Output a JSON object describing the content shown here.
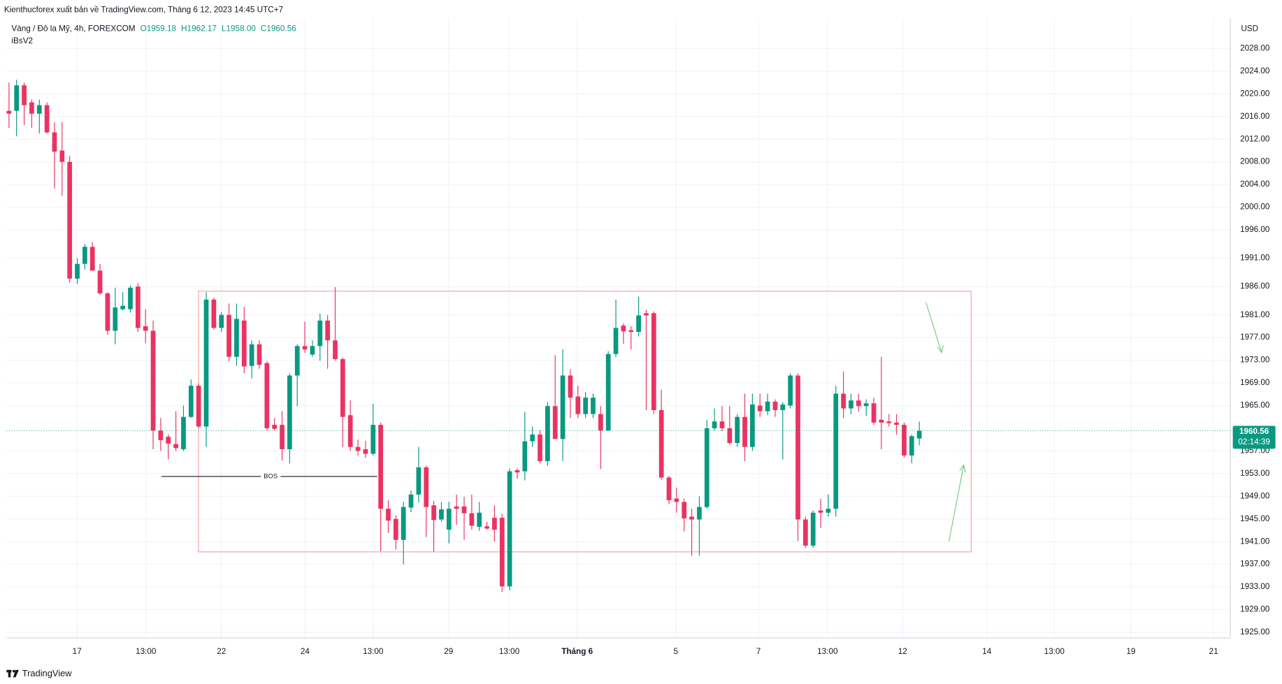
{
  "header": {
    "publisher": "Kienthucforex xuất bản về TradingView.com, Tháng 6 12, 2023 14:45 UTC+7",
    "footer": "TradingView"
  },
  "chart_data": {
    "type": "candlestick",
    "symbol": "Vàng / Đô la Mỹ, 4h, FOREXCOM",
    "ohlc_legend": [
      "O1959.18",
      "H1962.17",
      "L1958.00",
      "C1960.56"
    ],
    "indicator": "iBsV2",
    "currency": "USD",
    "price_label": "1960.56",
    "countdown": "02:14:39",
    "annotation": "BOS",
    "up_color": "#089981",
    "down_color": "#ea3362",
    "grid": true,
    "open": [
      2017,
      2017,
      2021.5,
      2018.5,
      2016.5,
      2018,
      2013.2,
      2010,
      2008,
      1987.4,
      1990,
      1993,
      1988.8,
      1984.8,
      1978.2,
      1982,
      1982,
      1986,
      1979,
      1978.2,
      1960.6,
      1959.5,
      1958.2,
      1957.3,
      1963,
      1968.5,
      1961.3,
      1983.7,
      1978.7,
      1981,
      1973.6,
      1980,
      1972,
      1975.8,
      1972.5,
      1961.6,
      1961.6,
      1957.3,
      1970.3,
      1975.5,
      1974,
      1975.5,
      1980,
      1976.5,
      1973.2,
      1963.3,
      1957.7,
      1957.3,
      1956.5,
      1961.6,
      1946.8,
      1945,
      1941.3,
      1947,
      1949.3,
      1954.1,
      1947.4,
      1944.9,
      1943.1,
      1947.2,
      1947.2,
      1946,
      1943.6,
      1943.7,
      1945.2,
      1945.2,
      1933.1,
      1953.6,
      1953.4,
      1958.7,
      1959.9,
      1955.2,
      1964.9,
      1959.1,
      1970.3,
      1966.6,
      1963.5,
      1963.5,
      1963.5,
      1960.6,
      1974.1,
      1979.1,
      1978.3,
      1978,
      1981.3,
      1981.3,
      1964.2,
      1952.3,
      1948.6,
      1948,
      1945.4,
      1944.9,
      1947.1,
      1961,
      1962.2,
      1961,
      1958.4,
      1963,
      1957.7,
      1965,
      1964,
      1965.7,
      1964.2,
      1965,
      1970.3,
      1944.9,
      1940.3,
      1946.5,
      1946.1,
      1946.8,
      1967.1,
      1964.5,
      1965.9,
      1964.9,
      1965.4,
      1962.5,
      1962.2,
      1962,
      1961.6,
      1956.2,
      1959.18
    ],
    "high": [
      2022,
      2022.5,
      2022,
      2019,
      2019,
      2018.5,
      2015,
      2015,
      2009,
      1991,
      1993.5,
      1993.8,
      1990,
      1985,
      1985.8,
      1985,
      1986.2,
      1986.6,
      1982,
      1980,
      1962.8,
      1959.9,
      1964,
      1965,
      1969.6,
      1968.9,
      1985,
      1984,
      1981.5,
      1983,
      1983,
      1982.4,
      1976.5,
      1976.5,
      1972.8,
      1962.8,
      1964,
      1970.7,
      1975.8,
      1979.8,
      1976.5,
      1981.2,
      1981,
      1985.9,
      1973.5,
      1965.9,
      1959,
      1958.8,
      1965.3,
      1962,
      1948.3,
      1945.6,
      1948,
      1950,
      1957.7,
      1954.4,
      1948.2,
      1948,
      1948,
      1949.3,
      1948.9,
      1949.3,
      1948,
      1944.5,
      1947.4,
      1945.9,
      1953.9,
      1953.9,
      1963.9,
      1961.3,
      1960.6,
      1965.6,
      1973.9,
      1974.9,
      1971.4,
      1968.5,
      1967.4,
      1967.1,
      1964.9,
      1974.6,
      1983.7,
      1979.5,
      1979,
      1984.2,
      1981.9,
      1981.6,
      1967.8,
      1952.6,
      1950.5,
      1948.6,
      1946.8,
      1949,
      1962.5,
      1964.5,
      1964.9,
      1964.9,
      1963.5,
      1967.1,
      1967.1,
      1967.1,
      1967.1,
      1966.1,
      1965.6,
      1970.7,
      1970.7,
      1945.4,
      1946.5,
      1948.6,
      1949.3,
      1968.5,
      1971,
      1967.1,
      1967.1,
      1966.1,
      1966.4,
      1973.6,
      1963.5,
      1963.5,
      1962,
      1959.9,
      1962.17
    ],
    "low": [
      2014,
      2012.5,
      2014.5,
      2014,
      2013,
      2013,
      2003.3,
      2002,
      1986.7,
      1986.5,
      1989,
      1988.8,
      1984.5,
      1977.5,
      1975.8,
      1981.8,
      1981.4,
      1978,
      1976,
      1957.3,
      1957,
      1955.5,
      1957,
      1957,
      1962.8,
      1961,
      1957.7,
      1978.4,
      1978,
      1972.8,
      1972,
      1970.7,
      1969.8,
      1971.5,
      1960.6,
      1960.6,
      1955.3,
      1954.8,
      1964.9,
      1974.3,
      1973.6,
      1972.9,
      1971.5,
      1972.9,
      1957.7,
      1957,
      1956.2,
      1955.8,
      1956.2,
      1939.3,
      1942.5,
      1939.6,
      1937,
      1946.2,
      1947.9,
      1941.8,
      1939.2,
      1944.5,
      1940.7,
      1944,
      1941.3,
      1943.1,
      1942.9,
      1943.1,
      1941,
      1932.1,
      1932.4,
      1952.1,
      1951.8,
      1957.7,
      1954.8,
      1954.4,
      1959.1,
      1955.2,
      1962.8,
      1962.8,
      1962.8,
      1962.8,
      1953.8,
      1960.6,
      1973.6,
      1975.9,
      1974.9,
      1977.2,
      1964.2,
      1963.5,
      1951.9,
      1947.6,
      1946.1,
      1942.8,
      1938.5,
      1938.5,
      1946.8,
      1960.6,
      1960.5,
      1958.1,
      1957.7,
      1955.2,
      1957,
      1963,
      1963.3,
      1963,
      1955.5,
      1964.5,
      1941.1,
      1939.9,
      1939.9,
      1943.4,
      1945.4,
      1945.4,
      1962.8,
      1963.5,
      1963.9,
      1963.2,
      1961.6,
      1957.3,
      1961.3,
      1959.9,
      1955.8,
      1954.8,
      1958.0
    ],
    "close": [
      2016.5,
      2021.5,
      2018,
      2016.5,
      2018,
      2013.2,
      2009.8,
      2008,
      1987.4,
      1990,
      1993,
      1988.8,
      1984.8,
      1978.2,
      1982.3,
      1982.6,
      1985.8,
      1978.7,
      1978.2,
      1960.6,
      1958.9,
      1958.3,
      1957.5,
      1963,
      1968.5,
      1961.3,
      1983.7,
      1978.7,
      1981,
      1973.6,
      1980.3,
      1971.9,
      1975.8,
      1972.2,
      1961,
      1960.9,
      1957.3,
      1970.3,
      1975.5,
      1974.9,
      1975.5,
      1980,
      1976.5,
      1973.2,
      1963,
      1957.7,
      1957,
      1956.5,
      1961.6,
      1946.8,
      1944.7,
      1941.3,
      1947.1,
      1949.3,
      1954.1,
      1947.1,
      1944.8,
      1946.7,
      1946.8,
      1946.8,
      1946,
      1943.8,
      1946.1,
      1943.3,
      1943.1,
      1933.1,
      1953.4,
      1953.2,
      1958.7,
      1959.9,
      1955.2,
      1964.9,
      1959.1,
      1970.3,
      1966.4,
      1963.5,
      1966.4,
      1966.4,
      1960.6,
      1974.1,
      1978.7,
      1978.1,
      1978,
      1980.9,
      1980.9,
      1964.2,
      1952.3,
      1948.3,
      1948,
      1945.1,
      1944.9,
      1947.1,
      1961,
      1962.2,
      1961,
      1958.4,
      1963,
      1957.7,
      1965.2,
      1964,
      1965.7,
      1964.2,
      1965.2,
      1970.3,
      1944.9,
      1940.3,
      1946.1,
      1946.1,
      1946.8,
      1967.1,
      1964.5,
      1965.9,
      1964.9,
      1965.4,
      1962,
      1962,
      1961.9,
      1961.6,
      1956.2,
      1959.6,
      1960.56
    ],
    "xlim": [
      -0.32,
      161
    ],
    "xticks": [
      {
        "value": 8.97,
        "label": "17"
      },
      {
        "value": 18.05,
        "label": "13:00"
      },
      {
        "value": 28.0,
        "label": "22"
      },
      {
        "value": 39.03,
        "label": "24"
      },
      {
        "value": 48.0,
        "label": "13:00"
      },
      {
        "value": 57.95,
        "label": "29"
      },
      {
        "value": 65.95,
        "label": "13:00"
      },
      {
        "value": 74.9,
        "label": "Tháng 6"
      },
      {
        "value": 87.9,
        "label": "5"
      },
      {
        "value": 98.8,
        "label": "7"
      },
      {
        "value": 107.9,
        "label": "13:00"
      },
      {
        "value": 117.8,
        "label": "12"
      },
      {
        "value": 128.9,
        "label": "14"
      },
      {
        "value": 137.8,
        "label": "13:00"
      },
      {
        "value": 147.9,
        "label": "19"
      },
      {
        "value": 158.8,
        "label": "21"
      }
    ],
    "ylim": [
      1924,
      2033.35
    ],
    "yticks": [
      {
        "value": 2028,
        "label": "2028.00"
      },
      {
        "value": 2024,
        "label": "2024.00"
      },
      {
        "value": 2020,
        "label": "2020.00"
      },
      {
        "value": 2016,
        "label": "2016.00"
      },
      {
        "value": 2012,
        "label": "2012.00"
      },
      {
        "value": 2008,
        "label": "2008.00"
      },
      {
        "value": 2004,
        "label": "2004.00"
      },
      {
        "value": 2000,
        "label": "2000.00"
      },
      {
        "value": 1996,
        "label": "1996.00"
      },
      {
        "value": 1991,
        "label": "1991.00"
      },
      {
        "value": 1986,
        "label": "1986.00"
      },
      {
        "value": 1981,
        "label": "1981.00"
      },
      {
        "value": 1977,
        "label": "1977.00"
      },
      {
        "value": 1973,
        "label": "1973.00"
      },
      {
        "value": 1969,
        "label": "1969.00"
      },
      {
        "value": 1965,
        "label": "1965.00"
      },
      {
        "value": 1957,
        "label": "1957.00"
      },
      {
        "value": 1953,
        "label": "1953.00"
      },
      {
        "value": 1949,
        "label": "1949.00"
      },
      {
        "value": 1945,
        "label": "1945.00"
      },
      {
        "value": 1941,
        "label": "1941.00"
      },
      {
        "value": 1937,
        "label": "1937.00"
      },
      {
        "value": 1933,
        "label": "1933.00"
      },
      {
        "value": 1929,
        "label": "1929.00"
      },
      {
        "value": 1925,
        "label": "1925.00"
      }
    ]
  }
}
